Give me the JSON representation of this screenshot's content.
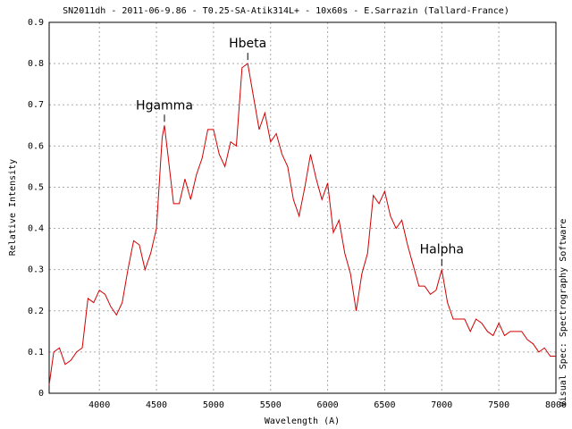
{
  "chart_data": {
    "type": "line",
    "title": "SN2011dh - 2011-06-9.86 - T0.25-SA-Atik314L+ - 10x60s - E.Sarrazin (Tallard-France)",
    "xlabel": "Wavelength (A)",
    "ylabel": "Relative Intensity",
    "side_text": "Visual Spec: Spectrography Software",
    "x": [
      3560,
      3600,
      3650,
      3700,
      3750,
      3800,
      3850,
      3900,
      3950,
      4000,
      4050,
      4100,
      4150,
      4200,
      4250,
      4300,
      4350,
      4400,
      4450,
      4500,
      4550,
      4570,
      4600,
      4650,
      4700,
      4750,
      4800,
      4850,
      4900,
      4950,
      5000,
      5050,
      5100,
      5150,
      5200,
      5250,
      5300,
      5350,
      5400,
      5450,
      5500,
      5550,
      5600,
      5650,
      5700,
      5750,
      5800,
      5850,
      5900,
      5950,
      6000,
      6050,
      6100,
      6150,
      6200,
      6250,
      6300,
      6350,
      6400,
      6450,
      6500,
      6550,
      6600,
      6650,
      6700,
      6750,
      6800,
      6850,
      6900,
      6950,
      7000,
      7050,
      7100,
      7150,
      7200,
      7250,
      7300,
      7350,
      7400,
      7450,
      7500,
      7550,
      7600,
      7650,
      7700,
      7750,
      7800,
      7850,
      7900,
      7950,
      8000
    ],
    "series": [
      {
        "name": "SN2011dh",
        "color": "#d00000",
        "values": [
          0.02,
          0.1,
          0.11,
          0.07,
          0.08,
          0.1,
          0.11,
          0.23,
          0.22,
          0.25,
          0.24,
          0.21,
          0.19,
          0.22,
          0.3,
          0.37,
          0.36,
          0.3,
          0.34,
          0.4,
          0.62,
          0.65,
          0.58,
          0.46,
          0.46,
          0.52,
          0.47,
          0.53,
          0.57,
          0.64,
          0.64,
          0.58,
          0.55,
          0.61,
          0.6,
          0.79,
          0.8,
          0.72,
          0.64,
          0.68,
          0.61,
          0.63,
          0.58,
          0.55,
          0.47,
          0.43,
          0.5,
          0.58,
          0.52,
          0.47,
          0.51,
          0.39,
          0.42,
          0.34,
          0.29,
          0.2,
          0.29,
          0.34,
          0.48,
          0.46,
          0.49,
          0.43,
          0.4,
          0.42,
          0.36,
          0.31,
          0.26,
          0.26,
          0.24,
          0.25,
          0.3,
          0.22,
          0.18,
          0.18,
          0.18,
          0.15,
          0.18,
          0.17,
          0.15,
          0.14,
          0.17,
          0.14,
          0.15,
          0.15,
          0.15,
          0.13,
          0.12,
          0.1,
          0.11,
          0.09,
          0.09
        ]
      }
    ],
    "annotations": [
      {
        "text": "Hgamma",
        "x": 4570
      },
      {
        "text": "Hbeta",
        "x": 5300
      },
      {
        "text": "Halpha",
        "x": 7000
      }
    ],
    "xlim": [
      3560,
      8000
    ],
    "xticks": [
      4000,
      4500,
      5000,
      5500,
      6000,
      6500,
      7000,
      7500,
      8000
    ],
    "ylim": [
      0,
      0.9
    ],
    "yticks": [
      0,
      0.1,
      0.2,
      0.3,
      0.4,
      0.5,
      0.6,
      0.7,
      0.8,
      0.9
    ],
    "grid": true
  }
}
